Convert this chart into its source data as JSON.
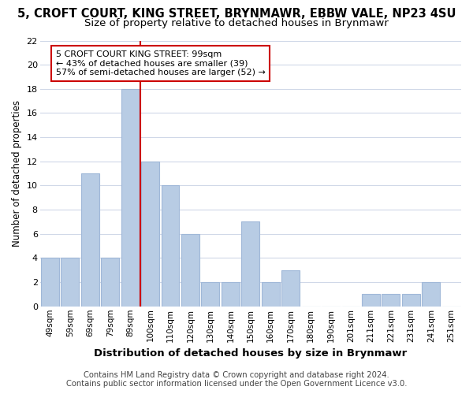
{
  "title": "5, CROFT COURT, KING STREET, BRYNMAWR, EBBW VALE, NP23 4SU",
  "subtitle": "Size of property relative to detached houses in Brynmawr",
  "xlabel": "Distribution of detached houses by size in Brynmawr",
  "ylabel": "Number of detached properties",
  "categories": [
    "49sqm",
    "59sqm",
    "69sqm",
    "79sqm",
    "89sqm",
    "100sqm",
    "110sqm",
    "120sqm",
    "130sqm",
    "140sqm",
    "150sqm",
    "160sqm",
    "170sqm",
    "180sqm",
    "190sqm",
    "201sqm",
    "211sqm",
    "221sqm",
    "231sqm",
    "241sqm",
    "251sqm"
  ],
  "values": [
    4,
    4,
    11,
    4,
    18,
    12,
    10,
    6,
    2,
    2,
    7,
    2,
    3,
    0,
    0,
    0,
    1,
    1,
    1,
    2,
    0
  ],
  "bar_color": "#b8cce4",
  "bar_edge_color": "#a0b8d8",
  "property_line_color": "#cc0000",
  "annotation_text": "5 CROFT COURT KING STREET: 99sqm\n← 43% of detached houses are smaller (39)\n57% of semi-detached houses are larger (52) →",
  "annotation_box_color": "#ffffff",
  "annotation_box_edge_color": "#cc0000",
  "ylim": [
    0,
    22
  ],
  "yticks": [
    0,
    2,
    4,
    6,
    8,
    10,
    12,
    14,
    16,
    18,
    20,
    22
  ],
  "footer_line1": "Contains HM Land Registry data © Crown copyright and database right 2024.",
  "footer_line2": "Contains public sector information licensed under the Open Government Licence v3.0.",
  "grid_color": "#d0d8e8",
  "background_color": "#ffffff",
  "title_fontsize": 10.5,
  "subtitle_fontsize": 9.5,
  "xlabel_fontsize": 9.5,
  "ylabel_fontsize": 8.5,
  "footer_fontsize": 7.2,
  "property_line_bar_index": 4,
  "annotation_fontsize": 8.0
}
